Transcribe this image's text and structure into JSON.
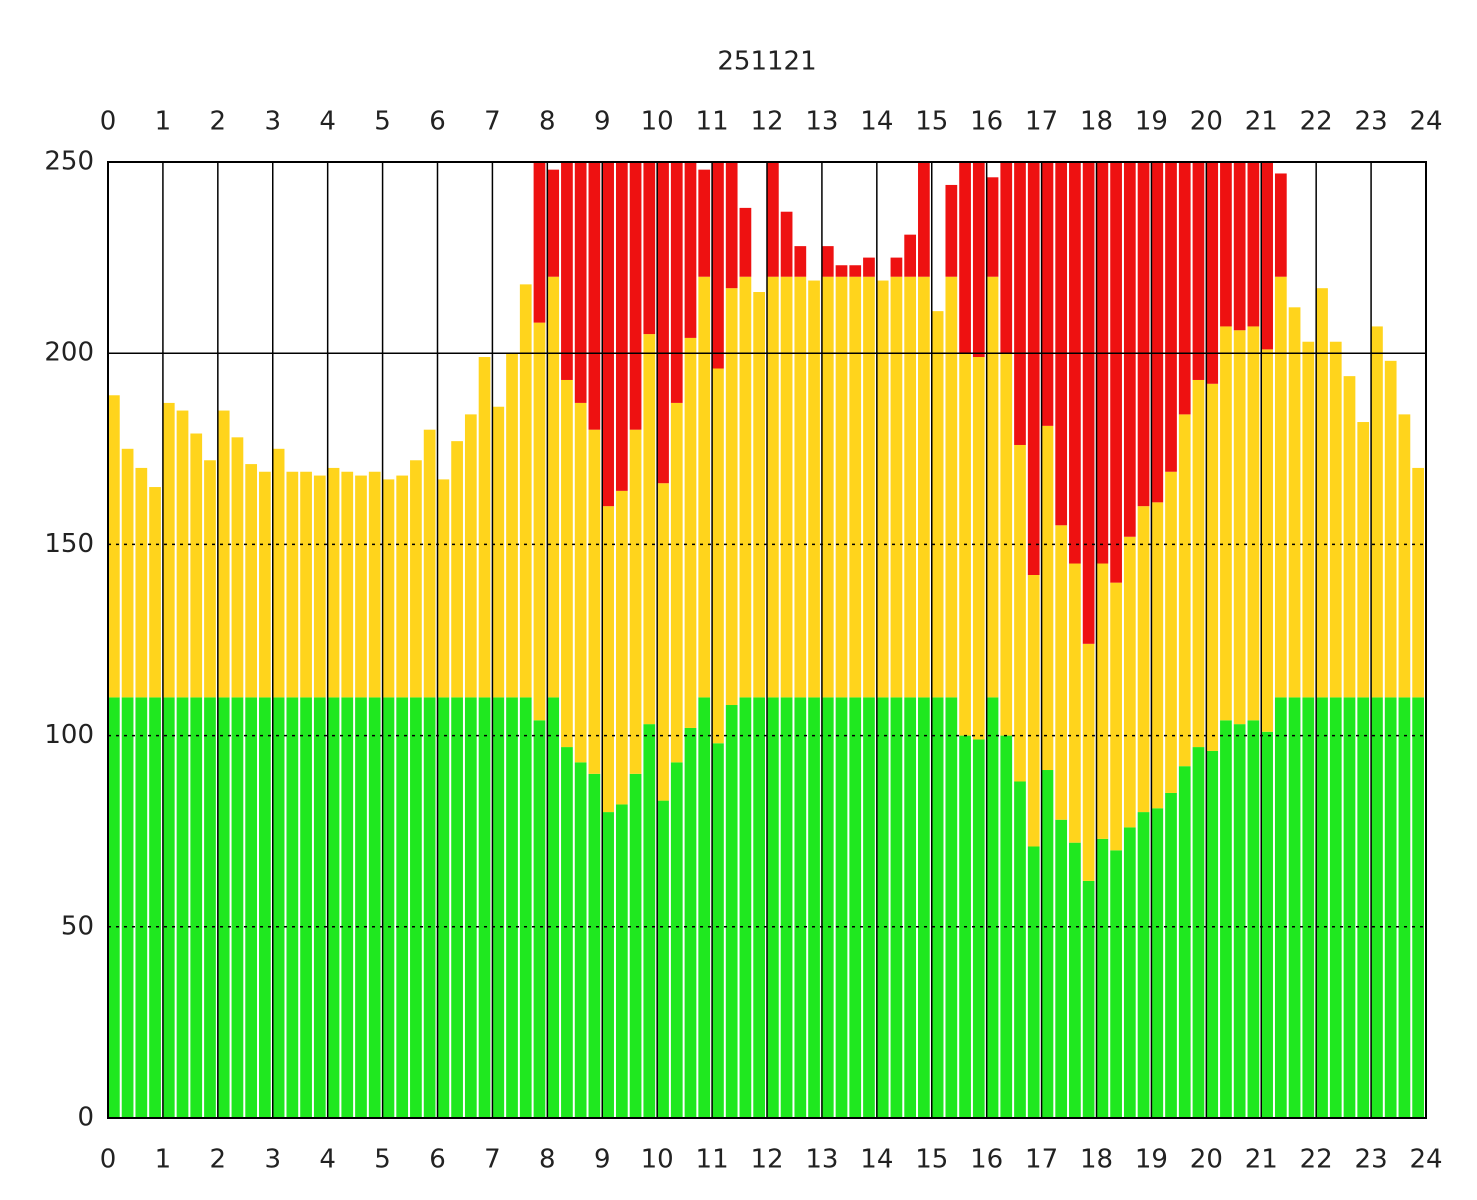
{
  "chart_data": {
    "type": "stacked_bar",
    "title": "251121",
    "x": [
      0,
      0.25,
      0.5,
      0.75,
      1,
      1.25,
      1.5,
      1.75,
      2,
      2.25,
      2.5,
      2.75,
      3,
      3.25,
      3.5,
      3.75,
      4,
      4.25,
      4.5,
      4.75,
      5,
      5.25,
      5.5,
      5.75,
      6,
      6.25,
      6.5,
      6.75,
      7,
      7.25,
      7.5,
      7.75,
      8,
      8.25,
      8.5,
      8.75,
      9,
      9.25,
      9.5,
      9.75,
      10,
      10.25,
      10.5,
      10.75,
      11,
      11.25,
      11.5,
      11.75,
      12,
      12.25,
      12.5,
      12.75,
      13,
      13.25,
      13.5,
      13.75,
      14,
      14.25,
      14.5,
      14.75,
      15,
      15.25,
      15.5,
      15.75,
      16,
      16.25,
      16.5,
      16.75,
      17,
      17.25,
      17.5,
      17.75,
      18,
      18.25,
      18.5,
      18.75,
      19,
      19.25,
      19.5,
      19.75,
      20,
      20.25,
      20.5,
      20.75,
      21,
      21.25,
      21.5,
      21.75,
      22,
      22.25,
      22.5,
      22.75,
      23,
      23.25,
      23.5,
      23.75
    ],
    "series": [
      {
        "color": "#1fe81f",
        "values": [
          110,
          110,
          110,
          110,
          110,
          110,
          110,
          110,
          110,
          110,
          110,
          110,
          110,
          110,
          110,
          110,
          110,
          110,
          110,
          110,
          110,
          110,
          110,
          110,
          110,
          110,
          110,
          110,
          110,
          110,
          110,
          104,
          110,
          97,
          93,
          90,
          80,
          82,
          90,
          103,
          83,
          93,
          102,
          110,
          98,
          108,
          110,
          110,
          110,
          110,
          110,
          110,
          110,
          110,
          110,
          110,
          110,
          110,
          110,
          110,
          110,
          110,
          100,
          99,
          110,
          100,
          88,
          71,
          91,
          78,
          72,
          62,
          73,
          70,
          76,
          80,
          81,
          85,
          92,
          97,
          96,
          104,
          103,
          104,
          101,
          110,
          110,
          110,
          110,
          110,
          110,
          110,
          110,
          110,
          110,
          110
        ]
      },
      {
        "color": "#ffd41c",
        "values": [
          79,
          65,
          60,
          55,
          77,
          75,
          69,
          62,
          75,
          68,
          61,
          59,
          65,
          59,
          59,
          58,
          60,
          59,
          58,
          59,
          57,
          58,
          62,
          70,
          57,
          67,
          74,
          89,
          76,
          90,
          108,
          104,
          110,
          96,
          94,
          90,
          80,
          82,
          90,
          102,
          83,
          94,
          102,
          110,
          98,
          109,
          110,
          106,
          110,
          110,
          110,
          109,
          110,
          110,
          110,
          110,
          109,
          110,
          110,
          110,
          101,
          110,
          100,
          100,
          110,
          100,
          88,
          71,
          90,
          77,
          73,
          62,
          72,
          70,
          76,
          80,
          80,
          84,
          92,
          96,
          96,
          103,
          103,
          103,
          100,
          110,
          102,
          93,
          107,
          93,
          84,
          72,
          97,
          88,
          74,
          60
        ]
      },
      {
        "color": "#ee1111",
        "values": [
          0,
          0,
          0,
          0,
          0,
          0,
          0,
          0,
          0,
          0,
          0,
          0,
          0,
          0,
          0,
          0,
          0,
          0,
          0,
          0,
          0,
          0,
          0,
          0,
          0,
          0,
          0,
          0,
          0,
          0,
          0,
          42,
          28,
          57,
          63,
          70,
          90,
          86,
          70,
          45,
          84,
          63,
          46,
          28,
          54,
          33,
          18,
          0,
          30,
          17,
          8,
          0,
          8,
          3,
          3,
          5,
          0,
          5,
          11,
          30,
          0,
          24,
          50,
          51,
          26,
          50,
          74,
          108,
          69,
          95,
          105,
          126,
          105,
          110,
          98,
          90,
          89,
          81,
          66,
          57,
          58,
          43,
          44,
          43,
          49,
          27,
          0,
          0,
          0,
          0,
          0,
          0,
          0,
          0,
          0,
          0
        ]
      }
    ],
    "xlim": [
      0,
      24
    ],
    "xticks": [
      0,
      1,
      2,
      3,
      4,
      5,
      6,
      7,
      8,
      9,
      10,
      11,
      12,
      13,
      14,
      15,
      16,
      17,
      18,
      19,
      20,
      21,
      22,
      23,
      24
    ],
    "ylim": [
      0,
      250
    ],
    "yticks": [
      0,
      50,
      100,
      150,
      200,
      250
    ],
    "grid": true,
    "reference_line": 200
  }
}
